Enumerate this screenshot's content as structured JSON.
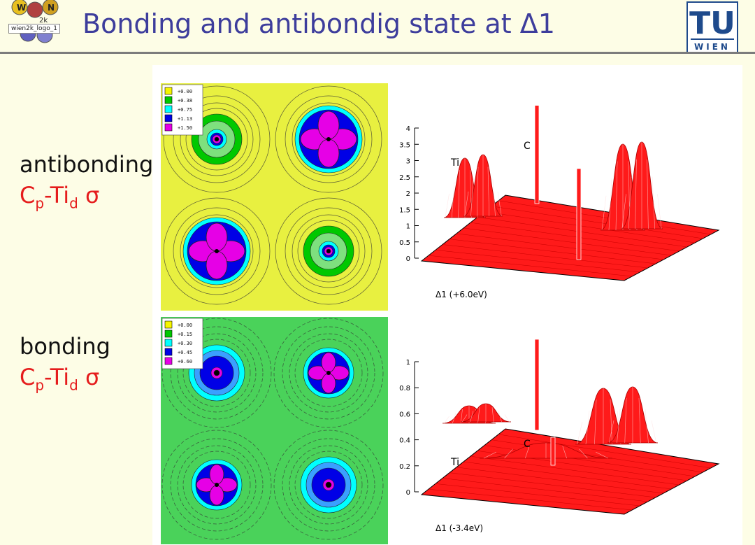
{
  "header": {
    "title": "Bonding and antibondig state at Δ1",
    "logo_left_label": "wien2k_logo_1",
    "logo_right_line1": "TU",
    "logo_right_line2": "WIEN"
  },
  "panels": [
    {
      "label": "antibonding",
      "subtitle": {
        "a": "C",
        "a_sub": "p",
        "b": "-Ti",
        "b_sub": "d",
        "c": " σ"
      },
      "legend": [
        "+0.00",
        "+0.38",
        "+0.75",
        "+1.13",
        "+1.50"
      ],
      "legend_colors": [
        "#f5f500",
        "#00c800",
        "#00ffff",
        "#0000e6",
        "#e600e6"
      ],
      "map_background": "#e8f040",
      "plot_axis_label": "Δ1 (+6.0eV)",
      "peak_labels": [
        "Ti",
        "C"
      ]
    },
    {
      "label": "bonding",
      "subtitle": {
        "a": "C",
        "a_sub": "p",
        "b": "-Ti",
        "b_sub": "d",
        "c": " σ"
      },
      "legend": [
        "+0.00",
        "+0.15",
        "+0.30",
        "+0.45",
        "+0.60"
      ],
      "legend_colors": [
        "#f5f500",
        "#00c800",
        "#00ffff",
        "#0000e6",
        "#e600e6"
      ],
      "map_background": "#4ad25a",
      "plot_axis_label": "Δ1 (-3.4eV)",
      "peak_labels": [
        "Ti",
        "C"
      ]
    }
  ],
  "chart_data": [
    {
      "type": "surface",
      "xlabel": "Δ1 (+6.0eV)",
      "z_ticks": [
        "0",
        "0.5",
        "1",
        "1.5",
        "2",
        "2.5",
        "3",
        "3.5",
        "4"
      ],
      "z_range": [
        0,
        4
      ],
      "annotations": [
        "Ti",
        "C"
      ]
    },
    {
      "type": "surface",
      "xlabel": "Δ1 (-3.4eV)",
      "z_ticks": [
        "0",
        "0.2",
        "0.4",
        "0.6",
        "0.8",
        "1"
      ],
      "z_range": [
        0,
        1
      ],
      "annotations": [
        "Ti",
        "C"
      ]
    }
  ],
  "colors": {
    "title": "#3d3d9c",
    "red_label": "#e51c1c",
    "surface": "#ff1a1a"
  }
}
